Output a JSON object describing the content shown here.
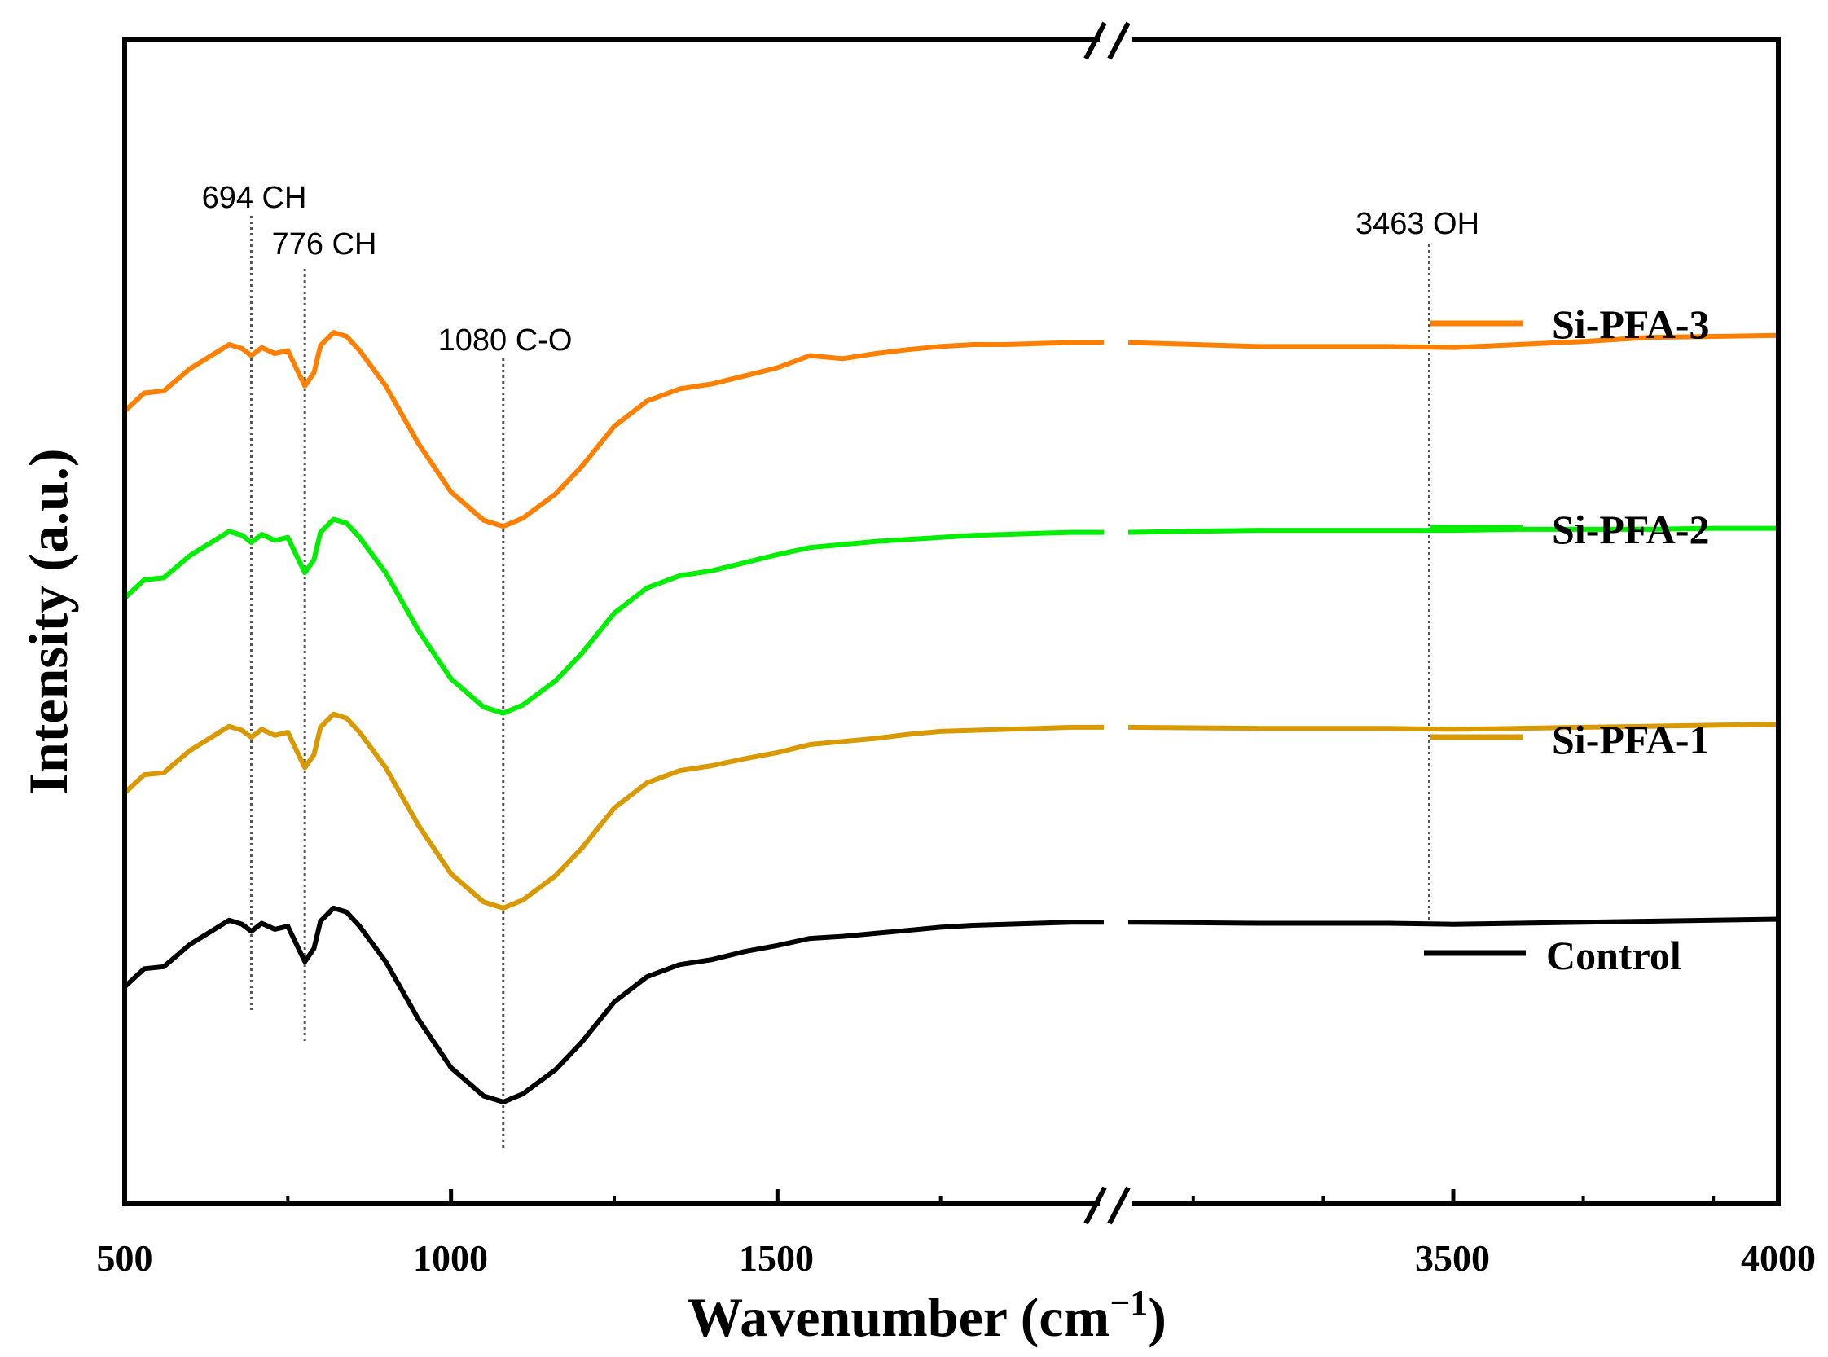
{
  "chart_data": {
    "type": "line",
    "title": "",
    "xlabel": "Wavenumber (cm",
    "xlabel_exp": "−1",
    "xlabel_close": ")",
    "ylabel": "Intensity (a.u.)",
    "x_segments": [
      {
        "xlim": [
          500,
          2000
        ],
        "ticks": [
          500,
          1000,
          1500
        ],
        "minor_ticks": [
          750,
          1250,
          1750
        ]
      },
      {
        "xlim": [
          3000,
          4000
        ],
        "ticks": [
          3500,
          4000
        ],
        "minor_ticks": [
          3100,
          3300,
          3700,
          3900
        ]
      }
    ],
    "tick_labels": [
      "500",
      "1000",
      "1500",
      "3500",
      "4000"
    ],
    "y_ticks_shown": false,
    "ylim": [
      0,
      100
    ],
    "legend_position": "right",
    "annotations": [
      {
        "label": "694 CH",
        "x": 694
      },
      {
        "label": "776 CH",
        "x": 776
      },
      {
        "label": "1080 C-O",
        "x": 1080
      },
      {
        "label": "3463 OH",
        "x": 3463
      }
    ],
    "series": [
      {
        "name": "Si-PFA-3",
        "color": "#FF8000",
        "x": [
          500,
          530,
          560,
          600,
          620,
          640,
          660,
          680,
          694,
          710,
          730,
          750,
          770,
          776,
          790,
          800,
          820,
          840,
          860,
          900,
          950,
          1000,
          1050,
          1080,
          1110,
          1160,
          1200,
          1250,
          1300,
          1350,
          1400,
          1450,
          1500,
          1550,
          1600,
          1650,
          1700,
          1750,
          1800,
          1850,
          1900,
          1950,
          2000,
          3000,
          3200,
          3400,
          3500,
          3600,
          3700,
          3800,
          3900,
          4000
        ],
        "y": [
          73.0,
          74.8,
          75.0,
          77.2,
          78.0,
          78.8,
          79.6,
          79.2,
          78.5,
          79.3,
          78.7,
          79.0,
          76.3,
          75.5,
          76.8,
          79.5,
          80.8,
          80.4,
          79.0,
          75.5,
          69.8,
          65.0,
          62.2,
          61.6,
          62.4,
          64.8,
          67.5,
          71.5,
          74.0,
          75.2,
          75.7,
          76.5,
          77.3,
          78.5,
          78.2,
          78.7,
          79.1,
          79.4,
          79.6,
          79.6,
          79.7,
          79.8,
          79.8,
          79.8,
          79.4,
          79.4,
          79.3,
          79.6,
          79.9,
          80.3,
          80.4,
          80.5
        ]
      },
      {
        "name": "Si-PFA-2",
        "color": "#00EE00",
        "x": [
          500,
          530,
          560,
          600,
          620,
          640,
          660,
          680,
          694,
          710,
          730,
          750,
          770,
          776,
          790,
          800,
          820,
          840,
          860,
          900,
          950,
          1000,
          1050,
          1080,
          1110,
          1160,
          1200,
          1250,
          1300,
          1350,
          1400,
          1450,
          1500,
          1550,
          1600,
          1650,
          1700,
          1750,
          1800,
          1850,
          1900,
          1950,
          2000,
          3000,
          3200,
          3400,
          3500,
          3600,
          3700,
          3800,
          3900,
          4000
        ],
        "y": [
          54.5,
          56.3,
          56.5,
          58.7,
          59.5,
          60.3,
          61.1,
          60.7,
          60.0,
          60.8,
          60.2,
          60.5,
          57.8,
          57.0,
          58.3,
          61.0,
          62.3,
          61.9,
          60.5,
          57.0,
          51.3,
          46.5,
          43.7,
          43.1,
          43.9,
          46.3,
          49.0,
          53.0,
          55.5,
          56.7,
          57.2,
          58.0,
          58.8,
          59.5,
          59.8,
          60.1,
          60.3,
          60.5,
          60.7,
          60.8,
          60.9,
          61.0,
          61.0,
          61.0,
          61.2,
          61.2,
          61.2,
          61.3,
          61.3,
          61.3,
          61.4,
          61.4
        ]
      },
      {
        "name": "Si-PFA-1",
        "color": "#D89A00",
        "x": [
          500,
          530,
          560,
          600,
          620,
          640,
          660,
          680,
          694,
          710,
          730,
          750,
          770,
          776,
          790,
          800,
          820,
          840,
          860,
          900,
          950,
          1000,
          1050,
          1080,
          1110,
          1160,
          1200,
          1250,
          1300,
          1350,
          1400,
          1450,
          1500,
          1550,
          1600,
          1650,
          1700,
          1750,
          1800,
          1850,
          1900,
          1950,
          2000,
          3000,
          3200,
          3400,
          3500,
          3600,
          3700,
          3800,
          3900,
          4000
        ],
        "y": [
          35.2,
          37.0,
          37.2,
          39.4,
          40.2,
          41.0,
          41.8,
          41.4,
          40.7,
          41.5,
          40.9,
          41.2,
          38.5,
          37.7,
          39.0,
          41.7,
          43.0,
          42.6,
          41.2,
          37.7,
          32.0,
          27.2,
          24.4,
          23.8,
          24.6,
          27.0,
          29.7,
          33.7,
          36.2,
          37.4,
          37.9,
          38.6,
          39.2,
          40.0,
          40.3,
          40.6,
          41.0,
          41.3,
          41.4,
          41.5,
          41.6,
          41.7,
          41.7,
          41.7,
          41.6,
          41.6,
          41.5,
          41.6,
          41.7,
          41.8,
          41.9,
          42.0
        ]
      },
      {
        "name": "Control",
        "color": "#000000",
        "x": [
          500,
          530,
          560,
          600,
          620,
          640,
          660,
          680,
          694,
          710,
          730,
          750,
          770,
          776,
          790,
          800,
          820,
          840,
          860,
          900,
          950,
          1000,
          1050,
          1080,
          1110,
          1160,
          1200,
          1250,
          1300,
          1350,
          1400,
          1450,
          1500,
          1550,
          1600,
          1650,
          1700,
          1750,
          1800,
          1850,
          1900,
          1950,
          2000,
          3000,
          3200,
          3400,
          3500,
          3600,
          3700,
          3800,
          3900,
          4000
        ],
        "y": [
          16.0,
          17.8,
          18.0,
          20.2,
          21.0,
          21.8,
          22.6,
          22.2,
          21.5,
          22.3,
          21.7,
          22.0,
          19.3,
          18.5,
          19.8,
          22.5,
          23.8,
          23.4,
          22.0,
          18.5,
          12.8,
          8.0,
          5.2,
          4.6,
          5.4,
          7.8,
          10.5,
          14.5,
          17.0,
          18.2,
          18.7,
          19.5,
          20.1,
          20.8,
          21.0,
          21.3,
          21.6,
          21.9,
          22.1,
          22.2,
          22.3,
          22.4,
          22.4,
          22.4,
          22.3,
          22.3,
          22.2,
          22.3,
          22.4,
          22.5,
          22.6,
          22.7
        ]
      }
    ]
  }
}
